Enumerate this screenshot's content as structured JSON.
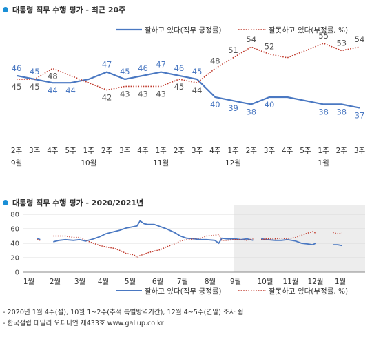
{
  "chart_data": [
    {
      "type": "line",
      "title": "대통령 직무 수행 평가 - 최근 20주",
      "legend_position": "top-right",
      "grid": false,
      "x": [
        "2주",
        "3주",
        "4주",
        "5주",
        "1주",
        "2주",
        "3주",
        "4주",
        "1주",
        "2주",
        "3주",
        "4주",
        "1주",
        "2주",
        "3주",
        "4주",
        "5주",
        "1주",
        "2주",
        "3주"
      ],
      "month_labels": [
        {
          "label": "9월",
          "index": 0
        },
        {
          "label": "10월",
          "index": 4
        },
        {
          "label": "11월",
          "index": 8
        },
        {
          "label": "12월",
          "index": 12
        },
        {
          "label": "1월",
          "index": 17
        }
      ],
      "series": [
        {
          "name": "잘하고 있다(직무 긍정률)",
          "color": "#4a78c2",
          "style": "solid",
          "values": [
            46,
            45,
            44,
            44,
            45,
            47,
            45,
            46,
            47,
            46,
            45,
            40,
            39,
            38,
            40,
            40,
            39,
            38,
            38,
            37
          ],
          "labels": [
            46,
            45,
            44,
            44,
            null,
            47,
            45,
            46,
            47,
            46,
            45,
            40,
            39,
            38,
            40,
            null,
            null,
            38,
            38,
            37
          ]
        },
        {
          "name": "잘못하고 있다(부정률, %)",
          "color": "#c0392b",
          "style": "dotted",
          "values": [
            45,
            45,
            48,
            46,
            44,
            42,
            43,
            43,
            43,
            45,
            44,
            48,
            51,
            54,
            52,
            51,
            53,
            55,
            53,
            54
          ],
          "labels": [
            45,
            45,
            48,
            null,
            null,
            42,
            43,
            43,
            43,
            45,
            44,
            48,
            51,
            54,
            52,
            null,
            null,
            55,
            53,
            54
          ]
        }
      ]
    },
    {
      "type": "line",
      "title": "대통령 직무 수행 평가 - 2020/2021년",
      "grid": true,
      "ylim": [
        0,
        80
      ],
      "yticks": [
        0,
        20,
        40,
        60,
        80
      ],
      "months": [
        "1월",
        "2월",
        "3월",
        "4월",
        "5월",
        "6월",
        "7월",
        "8월",
        "9월",
        "10월",
        "11월",
        "12월",
        "1월"
      ],
      "legend_position": "bottom",
      "shaded_from_month": "9월",
      "series": [
        {
          "name": "잘하고 있다(직무 긍정률)",
          "color": "#4a78c2",
          "style": "solid",
          "segments": [
            [
              [
                0.2,
                47
              ],
              [
                0.35,
                45
              ]
            ],
            [
              [
                1.0,
                42
              ],
              [
                1.3,
                44
              ],
              [
                1.6,
                45
              ],
              [
                2.0,
                44
              ],
              [
                2.3,
                45
              ],
              [
                2.6,
                43
              ],
              [
                3.0,
                46
              ],
              [
                3.3,
                49
              ],
              [
                3.6,
                53
              ],
              [
                4.0,
                56
              ],
              [
                4.3,
                58
              ],
              [
                4.6,
                61
              ],
              [
                5.0,
                63
              ],
              [
                5.15,
                64
              ],
              [
                5.3,
                71
              ],
              [
                5.5,
                67
              ],
              [
                5.7,
                66
              ],
              [
                6.0,
                66
              ],
              [
                6.3,
                63
              ],
              [
                6.6,
                60
              ],
              [
                7.0,
                55
              ],
              [
                7.3,
                50
              ],
              [
                7.6,
                47
              ],
              [
                8.0,
                46
              ],
              [
                8.3,
                45
              ],
              [
                8.6,
                45
              ],
              [
                9.0,
                44
              ],
              [
                9.2,
                40
              ],
              [
                9.35,
                47
              ],
              [
                9.6,
                46
              ],
              [
                10.0,
                46
              ],
              [
                10.3,
                45
              ],
              [
                10.6,
                46
              ],
              [
                10.9,
                44
              ]
            ],
            [
              [
                11.3,
                46
              ],
              [
                11.6,
                45
              ],
              [
                12.0,
                44
              ],
              [
                12.3,
                44
              ],
              [
                12.6,
                45
              ],
              [
                13.0,
                43
              ],
              [
                13.3,
                40
              ],
              [
                13.6,
                39
              ],
              [
                13.85,
                38
              ],
              [
                14.0,
                40
              ]
            ],
            [
              [
                14.85,
                38
              ],
              [
                15.1,
                38
              ],
              [
                15.3,
                37
              ]
            ]
          ]
        },
        {
          "name": "잘못하고 있다(부정률, %)",
          "color": "#c0392b",
          "style": "dotted",
          "segments": [
            [
              [
                0.2,
                45
              ],
              [
                0.35,
                44
              ]
            ],
            [
              [
                1.0,
                50
              ],
              [
                1.3,
                50
              ],
              [
                1.6,
                50
              ],
              [
                2.0,
                48
              ],
              [
                2.3,
                48
              ],
              [
                2.6,
                44
              ],
              [
                3.0,
                40
              ],
              [
                3.3,
                37
              ],
              [
                3.6,
                35
              ],
              [
                4.0,
                33
              ],
              [
                4.3,
                30
              ],
              [
                4.6,
                26
              ],
              [
                5.0,
                24
              ],
              [
                5.15,
                20
              ],
              [
                5.3,
                23
              ],
              [
                5.5,
                25
              ],
              [
                5.7,
                27
              ],
              [
                6.0,
                29
              ],
              [
                6.3,
                31
              ],
              [
                6.6,
                35
              ],
              [
                7.0,
                39
              ],
              [
                7.3,
                43
              ],
              [
                7.6,
                45
              ],
              [
                8.0,
                46
              ],
              [
                8.3,
                47
              ],
              [
                8.6,
                50
              ],
              [
                9.0,
                51
              ],
              [
                9.2,
                52
              ],
              [
                9.35,
                44
              ],
              [
                9.6,
                44
              ],
              [
                10.0,
                45
              ],
              [
                10.3,
                45
              ],
              [
                10.6,
                44
              ],
              [
                10.9,
                46
              ]
            ],
            [
              [
                11.3,
                45
              ],
              [
                11.6,
                46
              ],
              [
                12.0,
                46
              ],
              [
                12.3,
                47
              ],
              [
                12.6,
                46
              ],
              [
                13.0,
                48
              ],
              [
                13.3,
                51
              ],
              [
                13.6,
                54
              ],
              [
                13.85,
                56
              ],
              [
                14.0,
                54
              ]
            ],
            [
              [
                14.85,
                55
              ],
              [
                15.1,
                53
              ],
              [
                15.3,
                54
              ]
            ]
          ]
        }
      ]
    }
  ],
  "notes": [
    "- 2020년 1월 4주(설), 10월 1~2주(추석 특별방역기간), 12월 4~5주(연말) 조사 쉼",
    "- 한국갤럽 데일리 오피니언 제433호 www.gallup.co.kr"
  ]
}
